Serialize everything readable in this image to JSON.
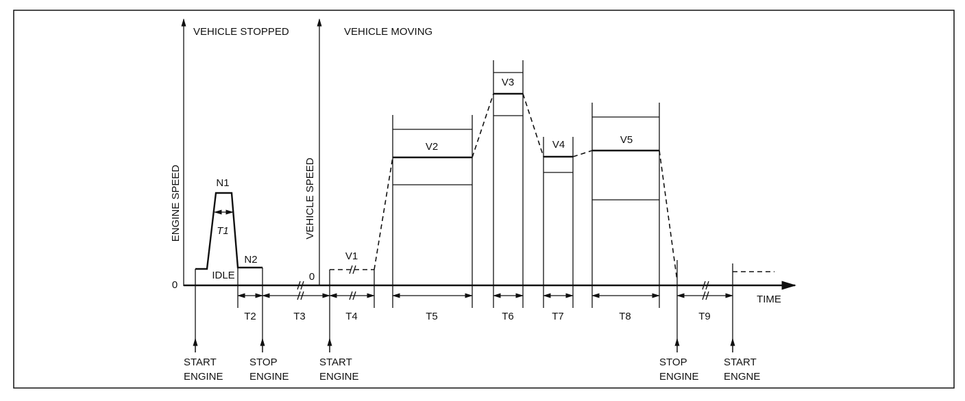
{
  "panels": {
    "stopped": {
      "title": "VEHICLE STOPPED",
      "axis_label": "ENGINE SPEED",
      "zero": "0"
    },
    "moving": {
      "title": "VEHICLE MOVING",
      "axis_label": "VEHICLE SPEED",
      "zero": "0"
    }
  },
  "engine_levels": {
    "n1": "N1",
    "n2": "N2",
    "idle": "IDLE"
  },
  "vehicle_levels": [
    "V1",
    "V2",
    "V3",
    "V4",
    "V5"
  ],
  "intervals": [
    "T1",
    "T2",
    "T3",
    "T4",
    "T5",
    "T6",
    "T7",
    "T8",
    "T9"
  ],
  "time_label": "TIME",
  "events": [
    {
      "lines": [
        "START",
        "ENGINE"
      ]
    },
    {
      "lines": [
        "STOP",
        "ENGINE"
      ]
    },
    {
      "lines": [
        "START",
        "ENGINE"
      ]
    },
    {
      "lines": [
        "STOP",
        "ENGINE"
      ]
    },
    {
      "lines": [
        "START",
        "ENGNE"
      ]
    }
  ]
}
